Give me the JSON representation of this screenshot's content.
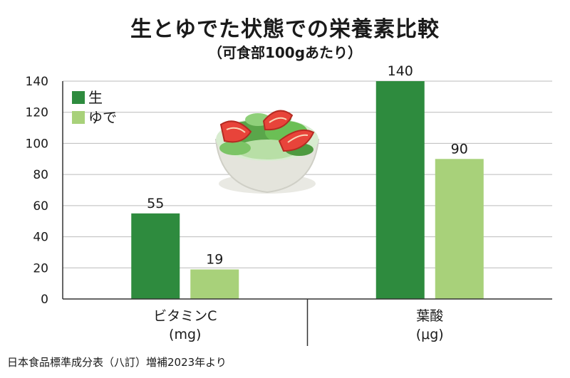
{
  "title": "生とゆでた状態での栄養素比較",
  "subtitle": "（可食部100gあたり）",
  "source": "日本食品標準成分表（八訂）増補2023年より",
  "colors": {
    "raw": "#2e8b3e",
    "boiled": "#a8d17a",
    "grid": "#bbbbbb",
    "axis": "#333333"
  },
  "chart_data": {
    "type": "bar",
    "categories": [
      {
        "name": "ビタミンC",
        "unit": "(mg)"
      },
      {
        "name": "葉酸",
        "unit": "(μg)"
      }
    ],
    "series": [
      {
        "name": "生",
        "color": "#2e8b3e",
        "values": [
          55,
          140
        ]
      },
      {
        "name": "ゆで",
        "color": "#a8d17a",
        "values": [
          19,
          90
        ]
      }
    ],
    "ylim": [
      0,
      140
    ],
    "yticks": [
      0,
      20,
      40,
      60,
      80,
      100,
      120,
      140
    ],
    "grid": true,
    "legend": "top-left"
  },
  "illustration": {
    "icon": "salad-bowl-icon"
  }
}
